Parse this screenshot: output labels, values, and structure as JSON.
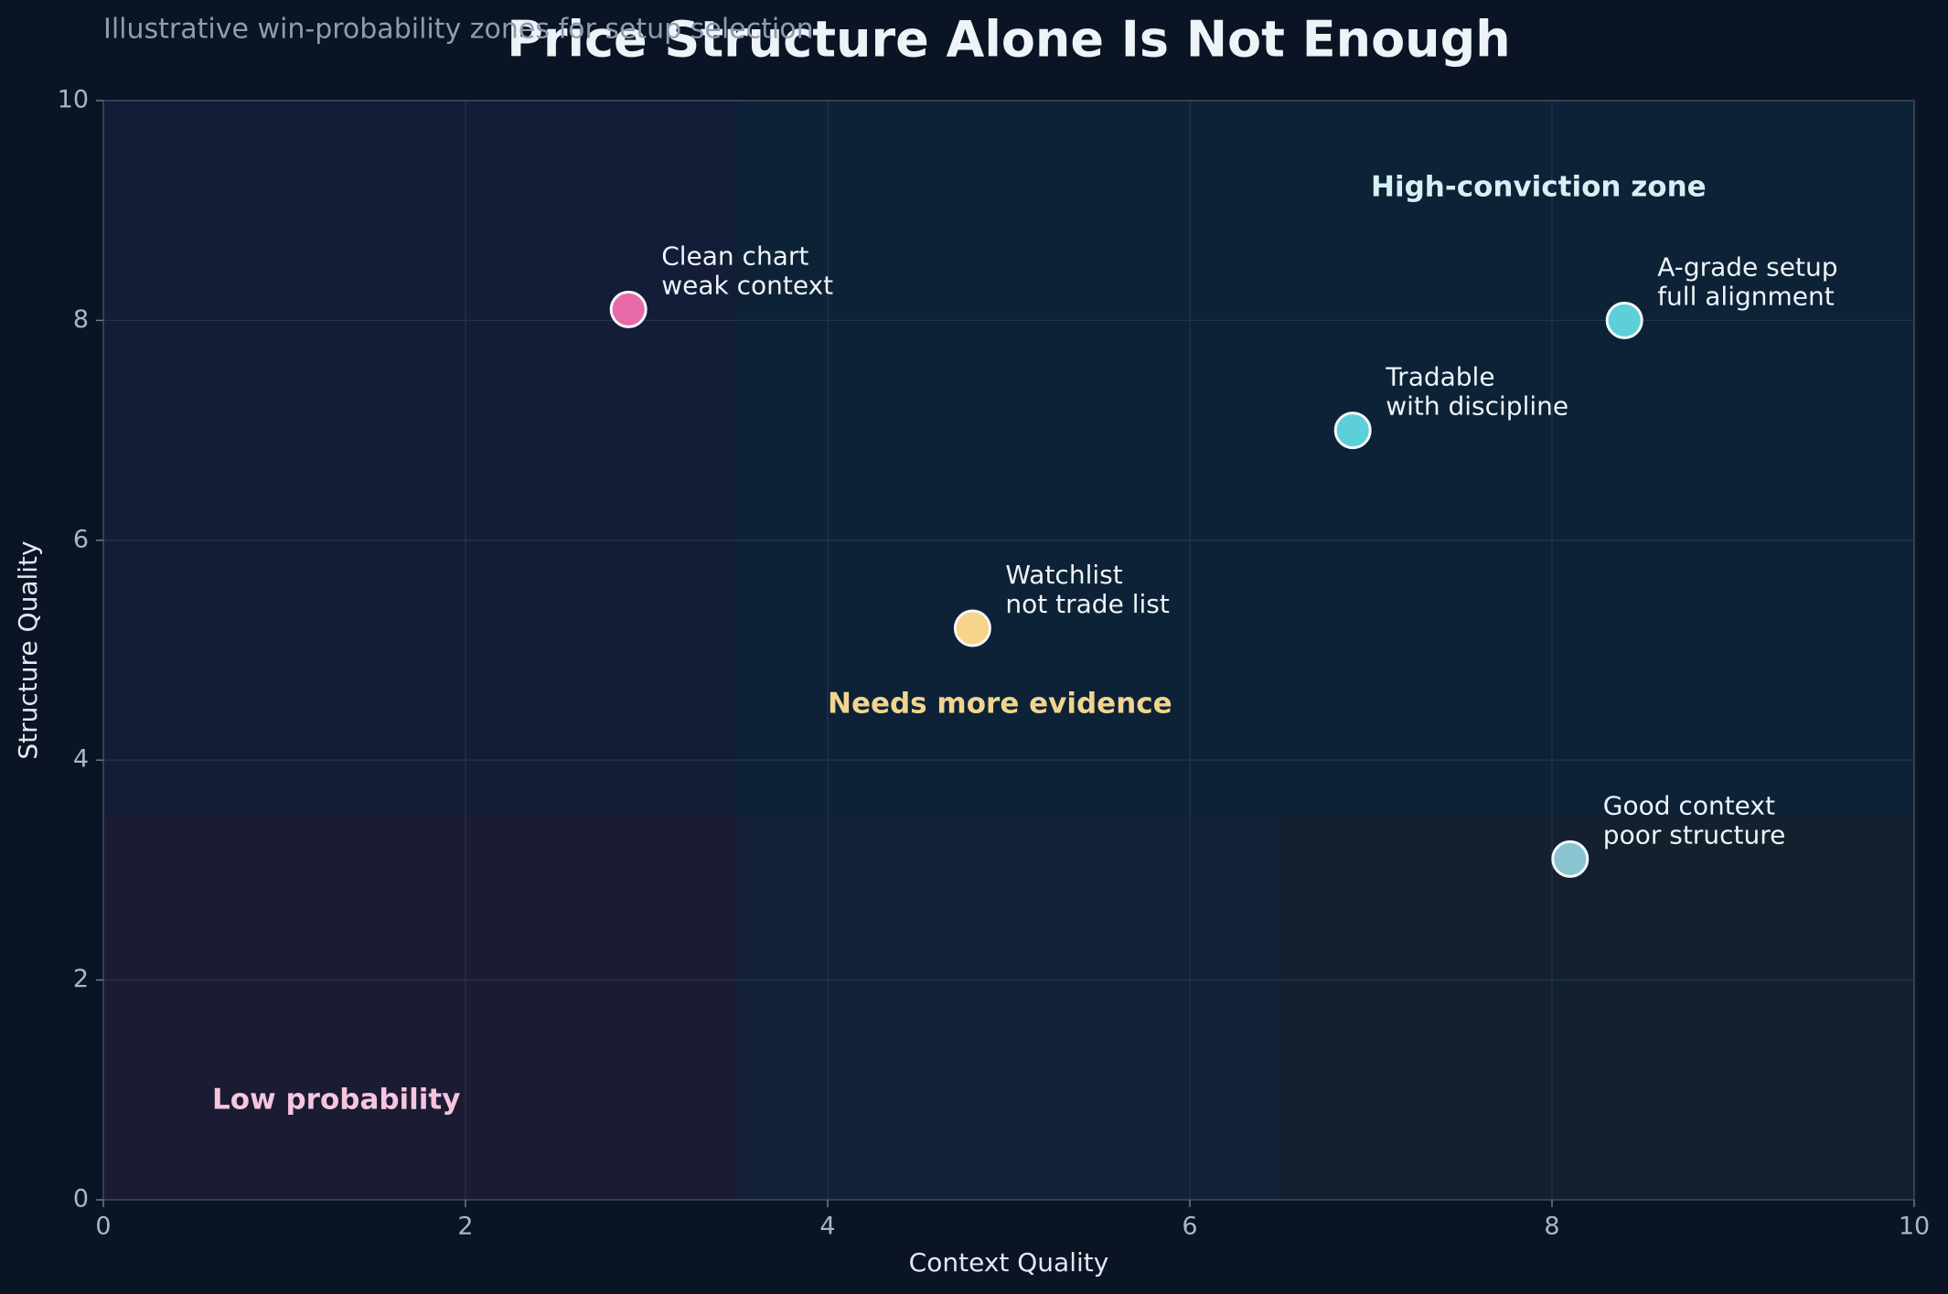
{
  "chart_data": {
    "type": "scatter",
    "title": "Price Structure Alone Is Not Enough",
    "subtitle": "Illustrative win-probability zones for setup selection",
    "xlabel": "Context Quality",
    "ylabel": "Structure Quality",
    "x": [
      2.9,
      4.8,
      6.9,
      8.4,
      8.1
    ],
    "y": [
      8.1,
      5.2,
      7.0,
      8.0,
      3.1
    ],
    "colors": [
      "#e86aa8",
      "#f6d48a",
      "#5ccfd8",
      "#5ccfd8",
      "#8ac4d0"
    ],
    "labels": [
      [
        "Clean chart",
        "weak context"
      ],
      [
        "Watchlist",
        "not trade list"
      ],
      [
        "Tradable",
        "with discipline"
      ],
      [
        "A-grade setup",
        "full alignment"
      ],
      [
        "Good context",
        "poor structure"
      ]
    ],
    "xlim": [
      0,
      10
    ],
    "ylim": [
      0,
      10
    ],
    "xticks": [
      0,
      2,
      4,
      6,
      8,
      10
    ],
    "yticks": [
      0,
      2,
      4,
      6,
      8,
      10
    ],
    "grid": true,
    "annotations": [
      {
        "text": "High-conviction zone",
        "color": "#d6f1f5"
      },
      {
        "text": "Needs more evidence",
        "color": "#f1d58f"
      },
      {
        "text": "Low probability",
        "color": "#f6c5de"
      }
    ]
  }
}
